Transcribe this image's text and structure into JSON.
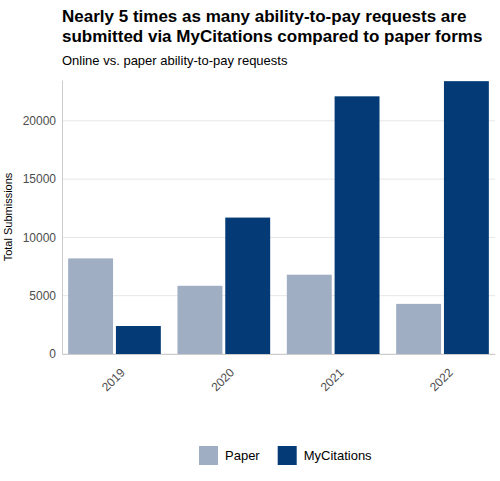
{
  "chart_data": {
    "type": "bar",
    "title": "Nearly 5 times as many ability-to-pay requests are submitted via MyCitations compared to paper forms",
    "subtitle": "Online vs. paper ability-to-pay requests",
    "y_label": "Total Submissions",
    "categories": [
      "2019",
      "2020",
      "2021",
      "2022"
    ],
    "series": [
      {
        "name": "Paper",
        "color": "#a0aec4",
        "values": [
          8200,
          5850,
          6800,
          4300
        ]
      },
      {
        "name": "MyCitations",
        "color": "#043a75",
        "values": [
          2400,
          11700,
          22100,
          23400
        ]
      }
    ],
    "ylim": [
      0,
      23500
    ],
    "yticks": [
      0,
      5000,
      10000,
      15000,
      20000
    ],
    "grid": true,
    "legend": "bottom"
  }
}
